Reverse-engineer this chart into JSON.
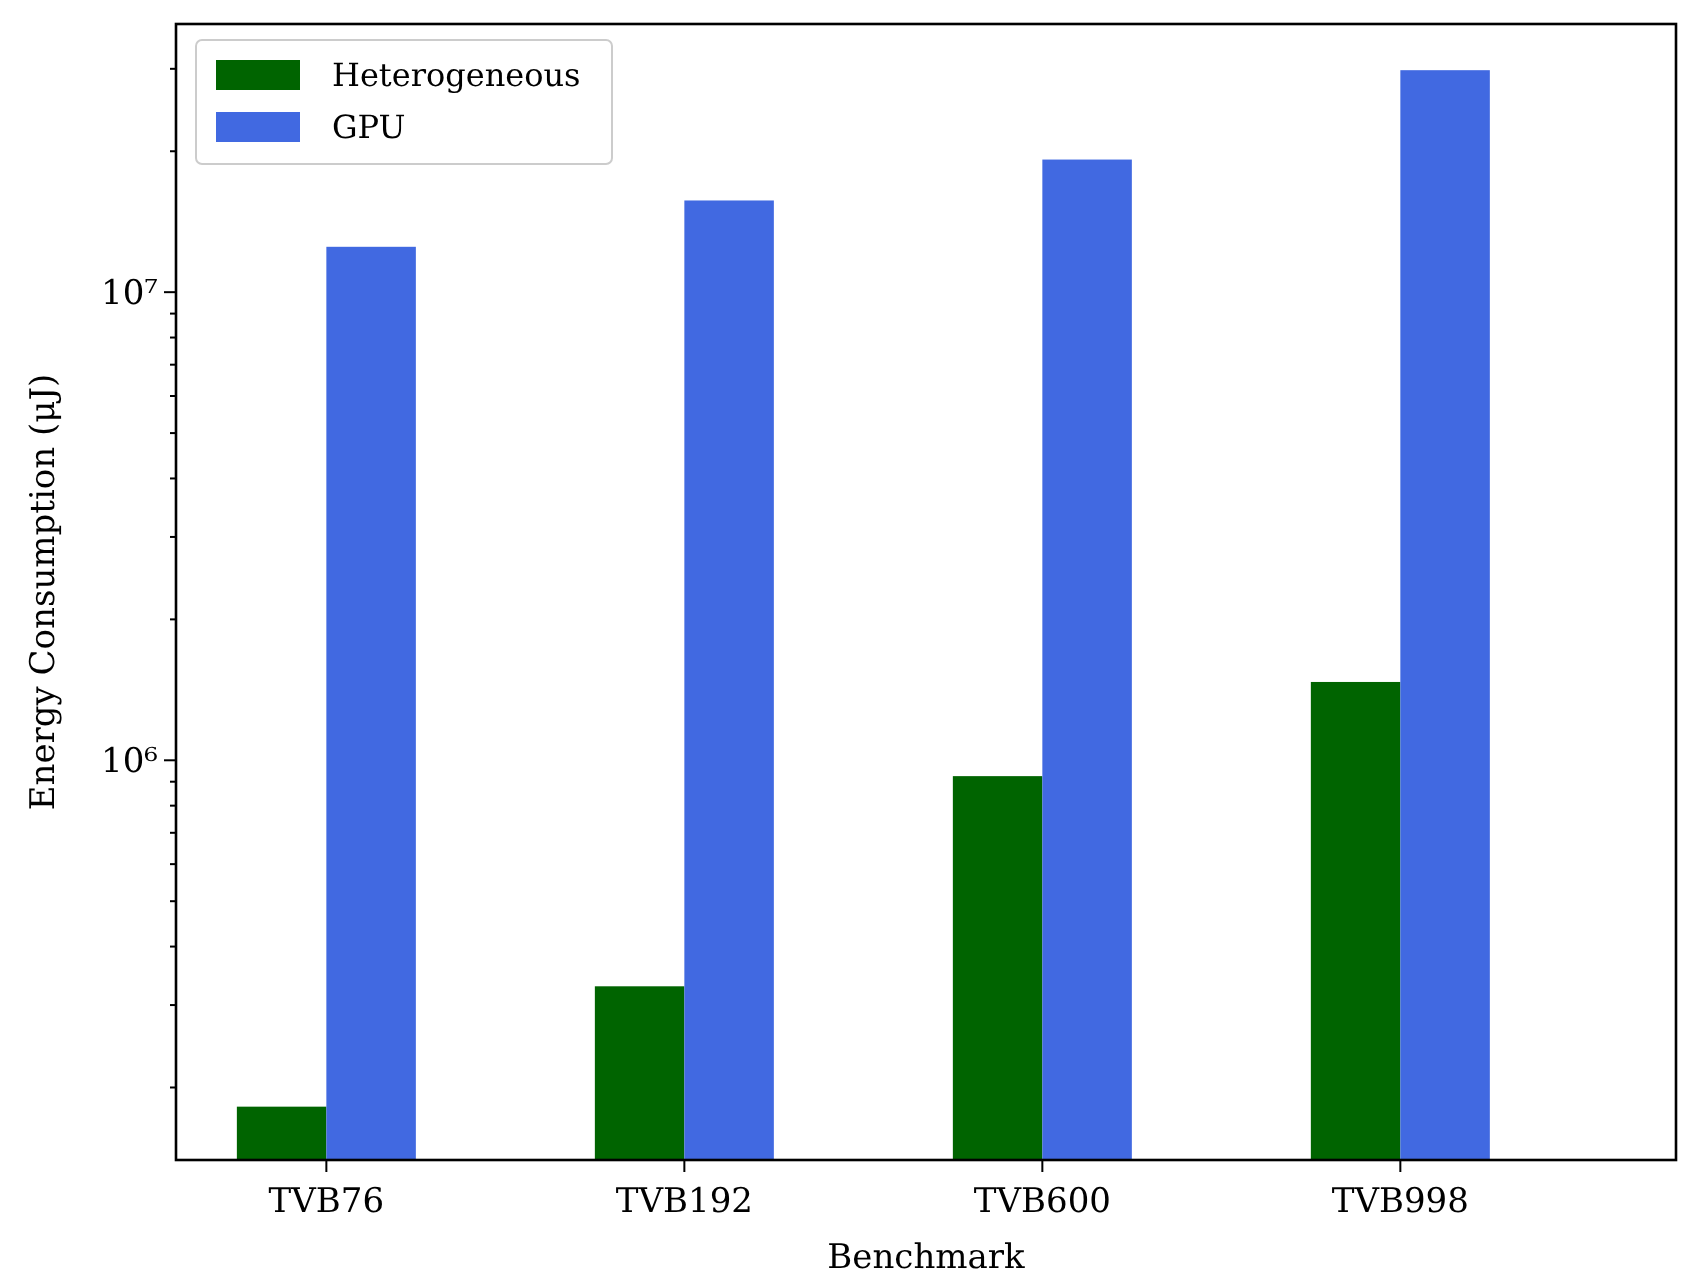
{
  "chart_data": {
    "type": "bar",
    "xlabel": "Benchmark",
    "ylabel": "Energy Consumption (μJ)",
    "categories": [
      "TVB76",
      "TVB192",
      "TVB600",
      "TVB998"
    ],
    "series": [
      {
        "name": "Heterogeneous",
        "color": "#006400",
        "values": [
          182000,
          329000,
          925000,
          1470000
        ]
      },
      {
        "name": "GPU",
        "color": "#4169e1",
        "values": [
          12500000,
          15700000,
          19200000,
          29800000
        ]
      }
    ],
    "log": true,
    "ylim": [
      140000,
      37400000
    ],
    "yticks": [
      {
        "value": 200000,
        "label": null
      },
      {
        "value": 300000,
        "label": null
      },
      {
        "value": 400000,
        "label": null
      },
      {
        "value": 500000,
        "label": null
      },
      {
        "value": 600000,
        "label": null
      },
      {
        "value": 700000,
        "label": null
      },
      {
        "value": 800000,
        "label": null
      },
      {
        "value": 900000,
        "label": null
      },
      {
        "value": 1000000,
        "label": "10⁶"
      },
      {
        "value": 2000000,
        "label": null
      },
      {
        "value": 3000000,
        "label": null
      },
      {
        "value": 4000000,
        "label": null
      },
      {
        "value": 5000000,
        "label": null
      },
      {
        "value": 6000000,
        "label": null
      },
      {
        "value": 7000000,
        "label": null
      },
      {
        "value": 8000000,
        "label": null
      },
      {
        "value": 9000000,
        "label": null
      },
      {
        "value": 10000000,
        "label": "10⁷"
      },
      {
        "value": 20000000,
        "label": null
      },
      {
        "value": 30000000,
        "label": null
      }
    ],
    "grid": false,
    "legend": "top left"
  }
}
